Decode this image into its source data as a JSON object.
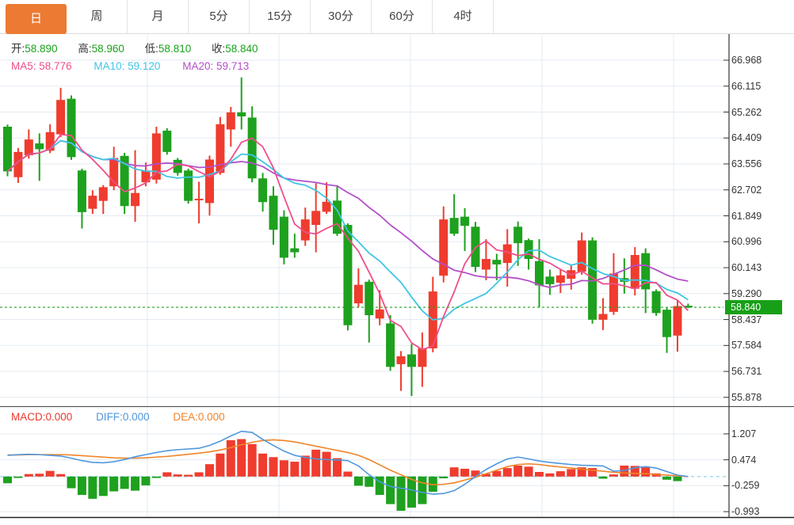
{
  "tabs": {
    "items": [
      {
        "label": "日",
        "active": true
      },
      {
        "label": "周",
        "active": false
      },
      {
        "label": "月",
        "active": false
      },
      {
        "label": "5分",
        "active": false
      },
      {
        "label": "15分",
        "active": false
      },
      {
        "label": "30分",
        "active": false
      },
      {
        "label": "60分",
        "active": false
      },
      {
        "label": "4时",
        "active": false
      }
    ]
  },
  "main_legend": {
    "open_label": "开:",
    "open": "58.890",
    "high_label": "高:",
    "high": "58.960",
    "low_label": "低:",
    "low": "58.810",
    "close_label": "收:",
    "close": "58.840",
    "ma5_label": "MA5:",
    "ma5": "58.776",
    "ma10_label": "MA10:",
    "ma10": "59.120",
    "ma20_label": "MA20:",
    "ma20": "59.713"
  },
  "macd_legend": {
    "macd_label": "MACD:",
    "macd": "0.000",
    "diff_label": "DIFF:",
    "diff": "0.000",
    "dea_label": "DEA:",
    "dea": "0.000"
  },
  "price_axis": {
    "last_price": "58.840",
    "ticks": [
      "66.968",
      "66.115",
      "65.262",
      "64.409",
      "63.556",
      "62.702",
      "61.849",
      "60.996",
      "60.143",
      "59.290",
      "58.437",
      "57.584",
      "56.731",
      "55.878"
    ]
  },
  "macd_axis": {
    "ticks": [
      "1.207",
      "0.474",
      "-0.259",
      "-0.993"
    ]
  },
  "colors": {
    "up": "#ef3c2e",
    "down": "#1ea11e",
    "ma5": "#ee4f8b",
    "ma10": "#3fc6e4",
    "ma20": "#b44fc8",
    "diff": "#4f97dd",
    "dea": "#ef8428",
    "tab_accent": "#ec7a33",
    "badge_bg": "#17a017",
    "grid": "#e3ebf3",
    "axis": "#333333",
    "zero_dash": "#86d2e8",
    "price_dotted": "#22a122"
  },
  "chart_data": {
    "type": "candlestick",
    "timeframe": "日",
    "legend_position": "top-left",
    "grid": true,
    "price_panel": {
      "ylim": [
        55.45,
        67.4
      ],
      "y_ticks": [
        66.968,
        66.115,
        65.262,
        64.409,
        63.556,
        62.702,
        61.849,
        60.996,
        60.143,
        59.29,
        58.437,
        57.584,
        56.731,
        55.878
      ],
      "last_close": 58.84,
      "ma_periods": [
        5,
        10,
        20
      ],
      "candles_ohlc": [
        [
          64.78,
          64.85,
          63.15,
          63.31
        ],
        [
          63.12,
          64.08,
          62.93,
          63.95
        ],
        [
          63.84,
          64.69,
          63.73,
          64.36
        ],
        [
          64.23,
          64.56,
          63.0,
          64.04
        ],
        [
          63.99,
          64.86,
          63.91,
          64.6
        ],
        [
          64.53,
          66.06,
          64.44,
          65.66
        ],
        [
          65.7,
          65.81,
          63.69,
          63.78
        ],
        [
          63.34,
          63.4,
          61.43,
          61.97
        ],
        [
          62.08,
          62.69,
          61.91,
          62.51
        ],
        [
          62.34,
          62.86,
          61.91,
          62.79
        ],
        [
          62.82,
          64.12,
          62.69,
          63.75
        ],
        [
          63.82,
          63.92,
          61.91,
          62.17
        ],
        [
          62.17,
          64.01,
          61.65,
          62.6
        ],
        [
          62.95,
          63.6,
          62.82,
          63.34
        ],
        [
          63.04,
          64.78,
          62.91,
          64.56
        ],
        [
          64.65,
          64.73,
          63.86,
          63.95
        ],
        [
          63.69,
          63.75,
          63.17,
          63.26
        ],
        [
          63.34,
          63.4,
          62.25,
          62.34
        ],
        [
          62.36,
          62.97,
          61.6,
          62.41
        ],
        [
          62.27,
          63.83,
          61.86,
          63.7
        ],
        [
          63.26,
          65.1,
          63.2,
          64.86
        ],
        [
          64.69,
          65.43,
          64.12,
          65.25
        ],
        [
          65.25,
          66.4,
          64.69,
          65.12
        ],
        [
          65.08,
          65.45,
          62.95,
          63.08
        ],
        [
          63.08,
          63.26,
          61.99,
          62.3
        ],
        [
          62.51,
          62.82,
          60.9,
          61.39
        ],
        [
          61.82,
          62.03,
          60.25,
          60.47
        ],
        [
          60.78,
          61.26,
          60.47,
          60.65
        ],
        [
          61.04,
          62.12,
          60.86,
          61.73
        ],
        [
          61.55,
          62.92,
          60.65,
          62.01
        ],
        [
          61.98,
          62.95,
          61.91,
          62.31
        ],
        [
          62.35,
          62.86,
          61.19,
          61.26
        ],
        [
          61.55,
          61.6,
          58.08,
          58.25
        ],
        [
          58.97,
          60.12,
          58.85,
          59.58
        ],
        [
          59.68,
          59.75,
          57.68,
          58.58
        ],
        [
          58.47,
          59.4,
          58.25,
          58.77
        ],
        [
          58.31,
          58.58,
          56.75,
          56.88
        ],
        [
          56.97,
          57.4,
          56.09,
          57.23
        ],
        [
          57.29,
          57.63,
          55.92,
          56.88
        ],
        [
          56.88,
          58.01,
          56.22,
          57.49
        ],
        [
          57.49,
          59.84,
          57.36,
          59.36
        ],
        [
          59.88,
          62.16,
          59.66,
          61.73
        ],
        [
          61.78,
          62.56,
          61.19,
          61.26
        ],
        [
          61.82,
          62.1,
          60.69,
          61.52
        ],
        [
          61.49,
          61.65,
          60.0,
          60.17
        ],
        [
          60.08,
          61.08,
          59.73,
          60.43
        ],
        [
          60.4,
          60.6,
          59.73,
          60.25
        ],
        [
          60.3,
          61.41,
          59.52,
          60.91
        ],
        [
          61.49,
          61.66,
          60.2,
          60.95
        ],
        [
          61.05,
          61.1,
          60.08,
          60.43
        ],
        [
          60.36,
          61.08,
          58.85,
          59.56
        ],
        [
          59.85,
          60.08,
          59.25,
          59.6
        ],
        [
          59.65,
          60.08,
          59.31,
          59.89
        ],
        [
          59.78,
          60.25,
          59.42,
          60.06
        ],
        [
          60.01,
          61.3,
          59.91,
          61.04
        ],
        [
          61.04,
          61.14,
          58.3,
          58.43
        ],
        [
          58.43,
          59.14,
          58.09,
          58.62
        ],
        [
          58.69,
          60.62,
          58.59,
          59.95
        ],
        [
          59.8,
          60.45,
          59.29,
          59.68
        ],
        [
          59.45,
          60.82,
          59.23,
          60.56
        ],
        [
          60.62,
          60.78,
          58.65,
          59.43
        ],
        [
          59.37,
          59.43,
          58.56,
          58.65
        ],
        [
          58.76,
          58.82,
          57.34,
          57.86
        ],
        [
          57.91,
          59.08,
          57.38,
          58.88
        ],
        [
          58.89,
          58.96,
          58.81,
          58.84
        ]
      ]
    },
    "macd_panel": {
      "y_ticks": [
        1.207,
        0.474,
        -0.259,
        -0.993
      ],
      "histogram": [
        -0.19,
        -0.04,
        0.07,
        0.08,
        0.16,
        0.07,
        -0.33,
        -0.52,
        -0.63,
        -0.55,
        -0.42,
        -0.35,
        -0.4,
        -0.25,
        -0.04,
        0.12,
        0.06,
        0.05,
        0.12,
        0.35,
        0.65,
        1.03,
        1.06,
        0.92,
        0.65,
        0.55,
        0.46,
        0.42,
        0.59,
        0.76,
        0.7,
        0.52,
        0.14,
        -0.26,
        -0.29,
        -0.52,
        -0.78,
        -0.97,
        -0.88,
        -0.78,
        -0.43,
        -0.05,
        0.26,
        0.22,
        0.17,
        0.08,
        0.16,
        0.24,
        0.31,
        0.28,
        0.13,
        0.09,
        0.15,
        0.21,
        0.26,
        0.24,
        -0.06,
        0.06,
        0.31,
        0.3,
        0.26,
        0.09,
        -0.09,
        -0.13,
        0.0
      ],
      "diff_line": [
        0.6,
        0.62,
        0.63,
        0.62,
        0.6,
        0.58,
        0.52,
        0.45,
        0.4,
        0.39,
        0.42,
        0.48,
        0.56,
        0.62,
        0.68,
        0.73,
        0.76,
        0.78,
        0.8,
        0.88,
        1.0,
        1.15,
        1.28,
        1.25,
        1.05,
        0.88,
        0.72,
        0.6,
        0.54,
        0.5,
        0.48,
        0.47,
        0.45,
        0.3,
        0.05,
        -0.15,
        -0.28,
        -0.33,
        -0.38,
        -0.45,
        -0.5,
        -0.48,
        -0.4,
        -0.22,
        0.0,
        0.2,
        0.36,
        0.5,
        0.55,
        0.5,
        0.44,
        0.4,
        0.37,
        0.34,
        0.32,
        0.31,
        0.3,
        0.15,
        0.17,
        0.25,
        0.28,
        0.24,
        0.14,
        0.04,
        0.0
      ],
      "dea_line": [
        0.61,
        0.61,
        0.62,
        0.62,
        0.62,
        0.62,
        0.61,
        0.59,
        0.57,
        0.55,
        0.53,
        0.52,
        0.52,
        0.53,
        0.55,
        0.57,
        0.6,
        0.63,
        0.66,
        0.7,
        0.75,
        0.82,
        0.9,
        0.97,
        1.02,
        1.04,
        1.02,
        0.98,
        0.92,
        0.86,
        0.8,
        0.74,
        0.68,
        0.6,
        0.48,
        0.33,
        0.18,
        0.05,
        -0.08,
        -0.18,
        -0.23,
        -0.22,
        -0.18,
        -0.1,
        -0.02,
        0.08,
        0.18,
        0.28,
        0.34,
        0.36,
        0.34,
        0.3,
        0.27,
        0.24,
        0.21,
        0.18,
        0.15,
        0.12,
        0.1,
        0.09,
        0.08,
        0.06,
        0.04,
        0.02,
        0.0
      ]
    }
  }
}
